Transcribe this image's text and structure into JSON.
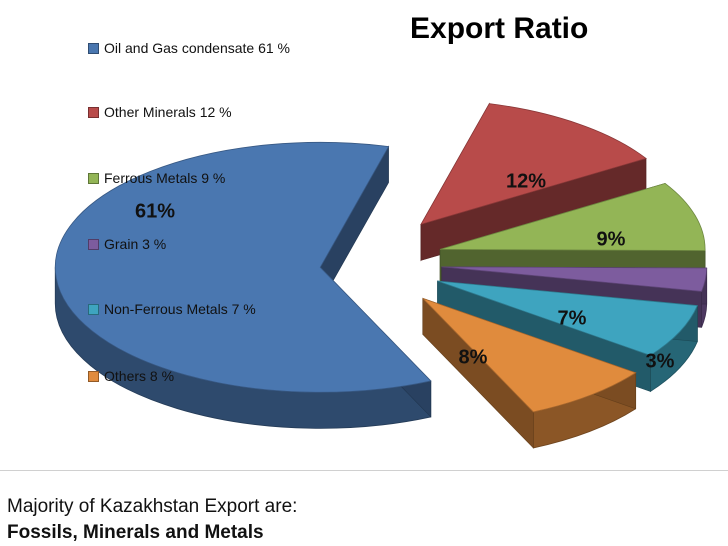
{
  "chart_data": {
    "type": "pie",
    "title": "Export Ratio",
    "categories": [
      "Oil and Gas condensate",
      "Other Minerals",
      "Ferrous Metals",
      "Grain",
      "Non-Ferrous Metals",
      "Others"
    ],
    "values": [
      61,
      12,
      9,
      3,
      7,
      8
    ],
    "legend": [
      "Oil and Gas condensate 61 %",
      "Other Minerals 12 %",
      "Ferrous Metals 9 %",
      "Grain 3 %",
      "Non-Ferrous Metals 7 %",
      "Others 8 %"
    ],
    "data_labels": [
      "61%",
      "12%",
      "9%",
      "3%",
      "7%",
      "8%"
    ],
    "colors": [
      "#4a77b0",
      "#b84b4a",
      "#93b556",
      "#7d5c9e",
      "#3ea4bf",
      "#e08b3d"
    ],
    "style": "3d exploded pie",
    "legend_position": "left"
  },
  "caption": {
    "line1": "Majority of Kazakhstan Export are:",
    "line2": "Fossils, Minerals and Metals"
  }
}
